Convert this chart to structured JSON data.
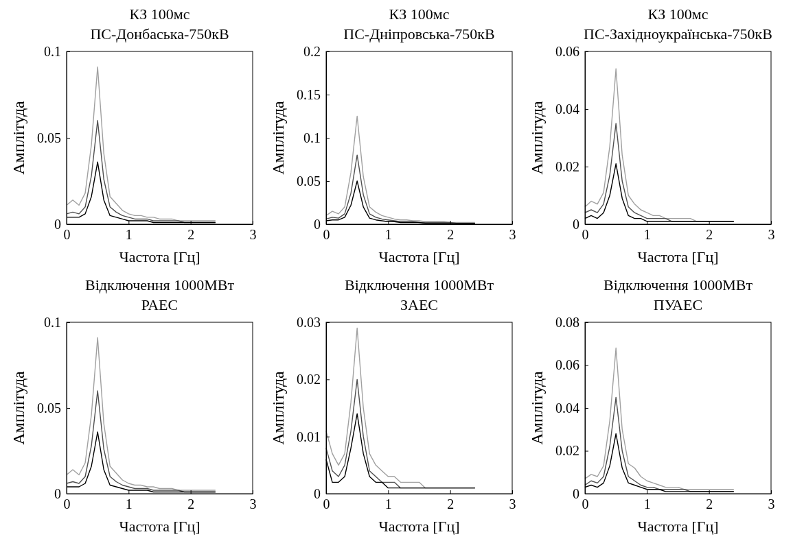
{
  "chart_data": [
    {
      "type": "line",
      "title": "КЗ 100мс",
      "subtitle": "ПС-Донбаська-750кВ",
      "xlabel": "Частота [Гц]",
      "ylabel": "Амплітуда",
      "xlim": [
        0,
        3
      ],
      "xticks": [
        0,
        1,
        2,
        3
      ],
      "ylim": [
        0,
        0.1
      ],
      "yticks": [
        0,
        0.05,
        0.1
      ],
      "x": [
        0,
        0.1,
        0.2,
        0.3,
        0.4,
        0.5,
        0.6,
        0.7,
        0.8,
        0.9,
        1,
        1.1,
        1.2,
        1.3,
        1.4,
        1.5,
        1.6,
        1.7,
        1.8,
        1.9,
        2,
        2.1,
        2.2,
        2.3,
        2.4
      ],
      "series": [
        {
          "color": "#a0a0a0",
          "values": [
            0.011,
            0.014,
            0.011,
            0.018,
            0.046,
            0.091,
            0.041,
            0.016,
            0.012,
            0.008,
            0.006,
            0.005,
            0.005,
            0.004,
            0.004,
            0.003,
            0.003,
            0.003,
            0.002,
            0.002,
            0.002,
            0.002,
            0.002,
            0.002,
            0.002
          ]
        },
        {
          "color": "#505050",
          "values": [
            0.006,
            0.007,
            0.006,
            0.01,
            0.028,
            0.06,
            0.026,
            0.01,
            0.007,
            0.005,
            0.004,
            0.003,
            0.003,
            0.003,
            0.002,
            0.002,
            0.002,
            0.002,
            0.002,
            0.001,
            0.001,
            0.001,
            0.001,
            0.001,
            0.001
          ]
        },
        {
          "color": "#000000",
          "values": [
            0.004,
            0.004,
            0.004,
            0.006,
            0.016,
            0.036,
            0.014,
            0.005,
            0.004,
            0.003,
            0.002,
            0.002,
            0.002,
            0.002,
            0.001,
            0.001,
            0.001,
            0.001,
            0.001,
            0.001,
            0.001,
            0.001,
            0.001,
            0.001,
            0.001
          ]
        }
      ]
    },
    {
      "type": "line",
      "title": "КЗ 100мс",
      "subtitle": "ПС-Дніпровська-750кВ",
      "xlabel": "Частота [Гц]",
      "ylabel": "Амплітуда",
      "xlim": [
        0,
        3
      ],
      "xticks": [
        0,
        1,
        2,
        3
      ],
      "ylim": [
        0,
        0.2
      ],
      "yticks": [
        0,
        0.05,
        0.1,
        0.15,
        0.2
      ],
      "x": [
        0,
        0.1,
        0.2,
        0.3,
        0.4,
        0.5,
        0.6,
        0.7,
        0.8,
        0.9,
        1,
        1.1,
        1.2,
        1.3,
        1.4,
        1.5,
        1.6,
        1.7,
        1.8,
        1.9,
        2,
        2.1,
        2.2,
        2.3,
        2.4
      ],
      "series": [
        {
          "color": "#a0a0a0",
          "values": [
            0.01,
            0.015,
            0.012,
            0.02,
            0.06,
            0.125,
            0.055,
            0.02,
            0.014,
            0.01,
            0.008,
            0.006,
            0.005,
            0.005,
            0.004,
            0.004,
            0.003,
            0.003,
            0.003,
            0.003,
            0.002,
            0.002,
            0.002,
            0.002,
            0.002
          ]
        },
        {
          "color": "#505050",
          "values": [
            0.006,
            0.008,
            0.007,
            0.012,
            0.036,
            0.08,
            0.034,
            0.012,
            0.008,
            0.006,
            0.005,
            0.004,
            0.003,
            0.003,
            0.003,
            0.002,
            0.002,
            0.002,
            0.002,
            0.002,
            0.002,
            0.001,
            0.001,
            0.001,
            0.001
          ]
        },
        {
          "color": "#000000",
          "values": [
            0.004,
            0.005,
            0.005,
            0.008,
            0.022,
            0.05,
            0.02,
            0.007,
            0.005,
            0.004,
            0.003,
            0.003,
            0.002,
            0.002,
            0.002,
            0.002,
            0.001,
            0.001,
            0.001,
            0.001,
            0.001,
            0.001,
            0.001,
            0.001,
            0.001
          ]
        }
      ]
    },
    {
      "type": "line",
      "title": "КЗ 100мс",
      "subtitle": "ПС-Західноукраїнська-750кВ",
      "xlabel": "Частота [Гц]",
      "ylabel": "Амплітуда",
      "xlim": [
        0,
        3
      ],
      "xticks": [
        0,
        1,
        2,
        3
      ],
      "ylim": [
        0,
        0.06
      ],
      "yticks": [
        0,
        0.02,
        0.04,
        0.06
      ],
      "x": [
        0,
        0.1,
        0.2,
        0.3,
        0.4,
        0.5,
        0.6,
        0.7,
        0.8,
        0.9,
        1,
        1.1,
        1.2,
        1.3,
        1.4,
        1.5,
        1.6,
        1.7,
        1.8,
        1.9,
        2,
        2.1,
        2.2,
        2.3,
        2.4
      ],
      "series": [
        {
          "color": "#a0a0a0",
          "values": [
            0.006,
            0.008,
            0.007,
            0.011,
            0.027,
            0.054,
            0.024,
            0.01,
            0.007,
            0.005,
            0.004,
            0.003,
            0.003,
            0.002,
            0.002,
            0.002,
            0.002,
            0.002,
            0.001,
            0.001,
            0.001,
            0.001,
            0.001,
            0.001,
            0.001
          ]
        },
        {
          "color": "#505050",
          "values": [
            0.004,
            0.005,
            0.004,
            0.007,
            0.017,
            0.035,
            0.015,
            0.006,
            0.004,
            0.003,
            0.002,
            0.002,
            0.002,
            0.002,
            0.001,
            0.001,
            0.001,
            0.001,
            0.001,
            0.001,
            0.001,
            0.001,
            0.001,
            0.001,
            0.001
          ]
        },
        {
          "color": "#000000",
          "values": [
            0.002,
            0.003,
            0.002,
            0.004,
            0.01,
            0.021,
            0.009,
            0.003,
            0.002,
            0.002,
            0.001,
            0.001,
            0.001,
            0.001,
            0.001,
            0.001,
            0.001,
            0.001,
            0.001,
            0.001,
            0.001,
            0.001,
            0.001,
            0.001,
            0.001
          ]
        }
      ]
    },
    {
      "type": "line",
      "title": "Відключення 1000МВт",
      "subtitle": "РАЕС",
      "xlabel": "Частота [Гц]",
      "ylabel": "Амплітуда",
      "xlim": [
        0,
        3
      ],
      "xticks": [
        0,
        1,
        2,
        3
      ],
      "ylim": [
        0,
        0.1
      ],
      "yticks": [
        0,
        0.05,
        0.1
      ],
      "x": [
        0,
        0.1,
        0.2,
        0.3,
        0.4,
        0.5,
        0.6,
        0.7,
        0.8,
        0.9,
        1,
        1.1,
        1.2,
        1.3,
        1.4,
        1.5,
        1.6,
        1.7,
        1.8,
        1.9,
        2,
        2.1,
        2.2,
        2.3,
        2.4
      ],
      "series": [
        {
          "color": "#a0a0a0",
          "values": [
            0.011,
            0.014,
            0.011,
            0.018,
            0.046,
            0.091,
            0.041,
            0.016,
            0.012,
            0.008,
            0.006,
            0.005,
            0.005,
            0.004,
            0.004,
            0.003,
            0.003,
            0.003,
            0.002,
            0.002,
            0.002,
            0.002,
            0.002,
            0.002,
            0.002
          ]
        },
        {
          "color": "#505050",
          "values": [
            0.006,
            0.007,
            0.006,
            0.01,
            0.028,
            0.06,
            0.026,
            0.01,
            0.007,
            0.005,
            0.004,
            0.003,
            0.003,
            0.003,
            0.002,
            0.002,
            0.002,
            0.002,
            0.002,
            0.001,
            0.001,
            0.001,
            0.001,
            0.001,
            0.001
          ]
        },
        {
          "color": "#000000",
          "values": [
            0.004,
            0.004,
            0.004,
            0.006,
            0.016,
            0.036,
            0.014,
            0.005,
            0.004,
            0.003,
            0.002,
            0.002,
            0.002,
            0.002,
            0.001,
            0.001,
            0.001,
            0.001,
            0.001,
            0.001,
            0.001,
            0.001,
            0.001,
            0.001,
            0.001
          ]
        }
      ]
    },
    {
      "type": "line",
      "title": "Відключення 1000МВт",
      "subtitle": "ЗАЕС",
      "xlabel": "Частота [Гц]",
      "ylabel": "Амплітуда",
      "xlim": [
        0,
        3
      ],
      "xticks": [
        0,
        1,
        2,
        3
      ],
      "ylim": [
        0,
        0.03
      ],
      "yticks": [
        0,
        0.01,
        0.02,
        0.03
      ],
      "x": [
        0,
        0.1,
        0.2,
        0.3,
        0.4,
        0.5,
        0.6,
        0.7,
        0.8,
        0.9,
        1,
        1.1,
        1.2,
        1.3,
        1.4,
        1.5,
        1.6,
        1.7,
        1.8,
        1.9,
        2,
        2.1,
        2.2,
        2.3,
        2.4
      ],
      "series": [
        {
          "color": "#a0a0a0",
          "values": [
            0.011,
            0.007,
            0.005,
            0.007,
            0.016,
            0.029,
            0.015,
            0.007,
            0.005,
            0.004,
            0.003,
            0.003,
            0.002,
            0.002,
            0.002,
            0.002,
            0.001,
            0.001,
            0.001,
            0.001,
            0.001,
            0.001,
            0.001,
            0.001,
            0.001
          ]
        },
        {
          "color": "#505050",
          "values": [
            0.008,
            0.004,
            0.003,
            0.005,
            0.011,
            0.02,
            0.01,
            0.004,
            0.003,
            0.002,
            0.002,
            0.002,
            0.001,
            0.001,
            0.001,
            0.001,
            0.001,
            0.001,
            0.001,
            0.001,
            0.001,
            0.001,
            0.001,
            0.001,
            0.001
          ]
        },
        {
          "color": "#000000",
          "values": [
            0.006,
            0.002,
            0.002,
            0.003,
            0.008,
            0.014,
            0.007,
            0.003,
            0.002,
            0.002,
            0.001,
            0.001,
            0.001,
            0.001,
            0.001,
            0.001,
            0.001,
            0.001,
            0.001,
            0.001,
            0.001,
            0.001,
            0.001,
            0.001,
            0.001
          ]
        }
      ]
    },
    {
      "type": "line",
      "title": "Відключення 1000МВт",
      "subtitle": "ПУАЕС",
      "xlabel": "Частота [Гц]",
      "ylabel": "Амплітуда",
      "xlim": [
        0,
        3
      ],
      "xticks": [
        0,
        1,
        2,
        3
      ],
      "ylim": [
        0,
        0.08
      ],
      "yticks": [
        0,
        0.02,
        0.04,
        0.06,
        0.08
      ],
      "x": [
        0,
        0.1,
        0.2,
        0.3,
        0.4,
        0.5,
        0.6,
        0.7,
        0.8,
        0.9,
        1,
        1.1,
        1.2,
        1.3,
        1.4,
        1.5,
        1.6,
        1.7,
        1.8,
        1.9,
        2,
        2.1,
        2.2,
        2.3,
        2.4
      ],
      "series": [
        {
          "color": "#a0a0a0",
          "values": [
            0.007,
            0.009,
            0.008,
            0.013,
            0.034,
            0.068,
            0.03,
            0.014,
            0.012,
            0.008,
            0.006,
            0.005,
            0.004,
            0.003,
            0.003,
            0.003,
            0.002,
            0.002,
            0.002,
            0.002,
            0.002,
            0.002,
            0.002,
            0.002,
            0.002
          ]
        },
        {
          "color": "#505050",
          "values": [
            0.004,
            0.006,
            0.005,
            0.008,
            0.022,
            0.045,
            0.02,
            0.008,
            0.006,
            0.004,
            0.003,
            0.003,
            0.002,
            0.002,
            0.002,
            0.002,
            0.002,
            0.001,
            0.001,
            0.001,
            0.001,
            0.001,
            0.001,
            0.001,
            0.001
          ]
        },
        {
          "color": "#000000",
          "values": [
            0.003,
            0.004,
            0.003,
            0.005,
            0.013,
            0.028,
            0.012,
            0.005,
            0.004,
            0.003,
            0.002,
            0.002,
            0.002,
            0.001,
            0.001,
            0.001,
            0.001,
            0.001,
            0.001,
            0.001,
            0.001,
            0.001,
            0.001,
            0.001,
            0.001
          ]
        }
      ]
    }
  ]
}
